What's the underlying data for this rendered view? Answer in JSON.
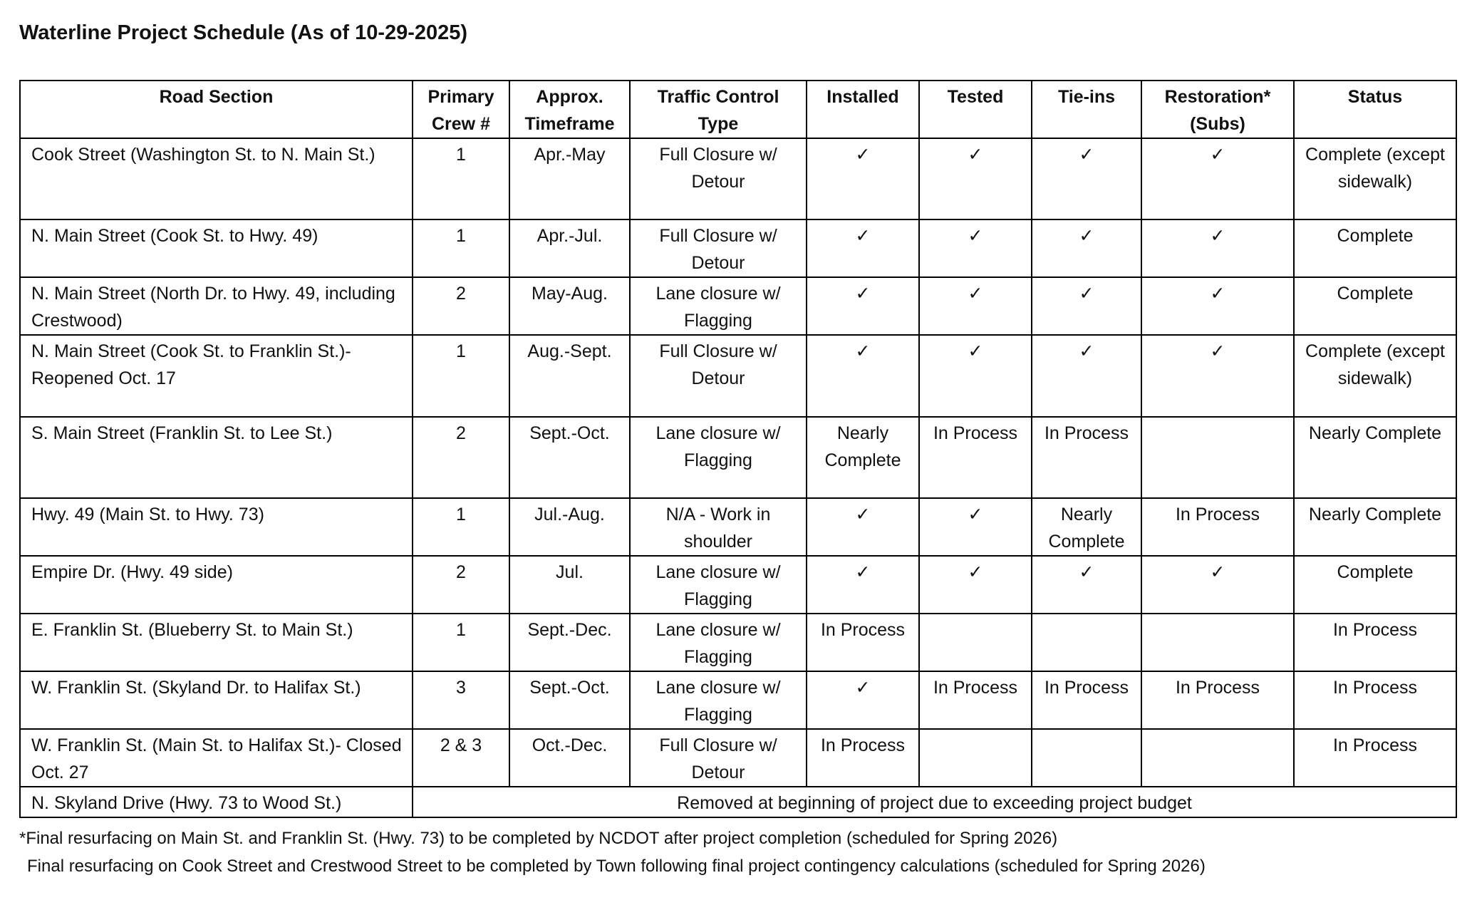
{
  "title": "Waterline Project Schedule (As of 10-29-2025)",
  "table": {
    "headers": [
      "Road Section",
      "Primary Crew #",
      "Approx. Timeframe",
      "Traffic Control Type",
      "Installed",
      "Tested",
      "Tie-ins",
      "Restoration* (Subs)",
      "Status"
    ],
    "rows": [
      [
        "Cook Street (Washington St. to N. Main St.)",
        "1",
        "Apr.-May",
        "Full Closure w/ Detour",
        "✓",
        "✓",
        "✓",
        "✓",
        "Complete (except sidewalk)"
      ],
      [
        "N. Main Street (Cook St. to Hwy. 49)",
        "1",
        "Apr.-Jul.",
        "Full Closure w/ Detour",
        "✓",
        "✓",
        "✓",
        "✓",
        "Complete"
      ],
      [
        "N. Main Street (North Dr. to Hwy. 49, including Crestwood)",
        "2",
        "May-Aug.",
        "Lane closure w/ Flagging",
        "✓",
        "✓",
        "✓",
        "✓",
        "Complete"
      ],
      [
        "N. Main Street (Cook St. to Franklin St.)- Reopened Oct. 17",
        "1",
        "Aug.-Sept.",
        "Full Closure w/ Detour",
        "✓",
        "✓",
        "✓",
        "✓",
        "Complete (except sidewalk)"
      ],
      [
        "S. Main Street (Franklin St. to Lee St.)",
        "2",
        "Sept.-Oct.",
        "Lane closure w/ Flagging",
        "Nearly Complete",
        "In Process",
        "In Process",
        null,
        "Nearly Complete"
      ],
      [
        "Hwy. 49 (Main St. to Hwy. 73)",
        "1",
        "Jul.-Aug.",
        "N/A - Work in shoulder",
        "✓",
        "✓",
        "Nearly Complete",
        "In Process",
        "Nearly Complete"
      ],
      [
        "Empire Dr. (Hwy. 49 side)",
        "2",
        "Jul.",
        "Lane closure w/ Flagging",
        "✓",
        "✓",
        "✓",
        "✓",
        "Complete"
      ],
      [
        "E. Franklin St. (Blueberry St. to Main St.)",
        "1",
        "Sept.-Dec.",
        "Lane closure w/ Flagging",
        "In Process",
        null,
        null,
        null,
        "In Process"
      ],
      [
        "W. Franklin St. (Skyland Dr. to Halifax St.)",
        "3",
        "Sept.-Oct.",
        "Lane closure w/ Flagging",
        "✓",
        "In Process",
        "In Process",
        "In Process",
        "In Process"
      ],
      [
        "W. Franklin St. (Main St. to Halifax St.)- Closed Oct. 27",
        "2 & 3",
        "Oct.-Dec.",
        "Full Closure w/ Detour",
        "In Process",
        null,
        null,
        null,
        "In Process"
      ],
      [
        "N. Skyland Drive (Hwy. 73 to Wood St.)",
        "Removed at beginning of project due to exceeding project budget"
      ]
    ]
  },
  "footnotes": [
    "*Final resurfacing on Main St. and Franklin St. (Hwy. 73) to be completed by NCDOT after project completion (scheduled for Spring 2026)",
    "Final resurfacing on Cook Street and Crestwood Street to be completed by Town following final project contingency calculations (scheduled for Spring 2026)"
  ]
}
